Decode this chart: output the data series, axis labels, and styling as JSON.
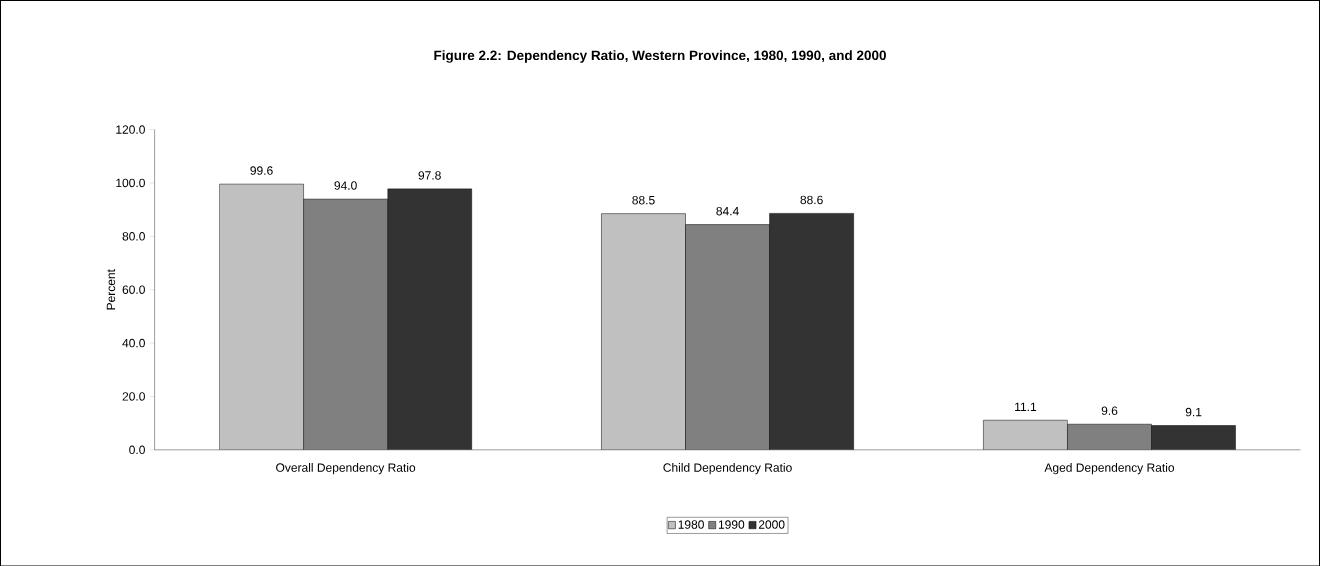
{
  "chart_data": {
    "type": "bar",
    "title": "Figure 2.2: Dependency Ratio, Western Province, 1980, 1990, and 2000",
    "ylabel": "Percent",
    "categories": [
      "Overall Dependency Ratio",
      "Child Dependency Ratio",
      "Aged Dependency Ratio"
    ],
    "series": [
      {
        "name": "1980",
        "color": "#c0c0c0",
        "values": [
          99.6,
          88.5,
          11.1
        ],
        "value_labels": [
          "99.6",
          "88.5",
          "11.1"
        ]
      },
      {
        "name": "1990",
        "color": "#808080",
        "values": [
          94.0,
          84.4,
          9.6
        ],
        "value_labels": [
          "94.0",
          "84.4",
          "9.6"
        ]
      },
      {
        "name": "2000",
        "color": "#333333",
        "values": [
          97.8,
          88.6,
          9.1
        ],
        "value_labels": [
          "97.8",
          "88.6",
          "9.1"
        ]
      }
    ],
    "ylim": [
      0,
      120
    ],
    "yticks": [
      {
        "value": 0,
        "label": "0.0"
      },
      {
        "value": 20,
        "label": "20.0"
      },
      {
        "value": 40,
        "label": "40.0"
      },
      {
        "value": 60,
        "label": "60.0"
      },
      {
        "value": 80,
        "label": "80.0"
      },
      {
        "value": 100,
        "label": "100.0"
      },
      {
        "value": 120,
        "label": "120.0"
      }
    ],
    "grid": false,
    "legend": "bottom"
  }
}
